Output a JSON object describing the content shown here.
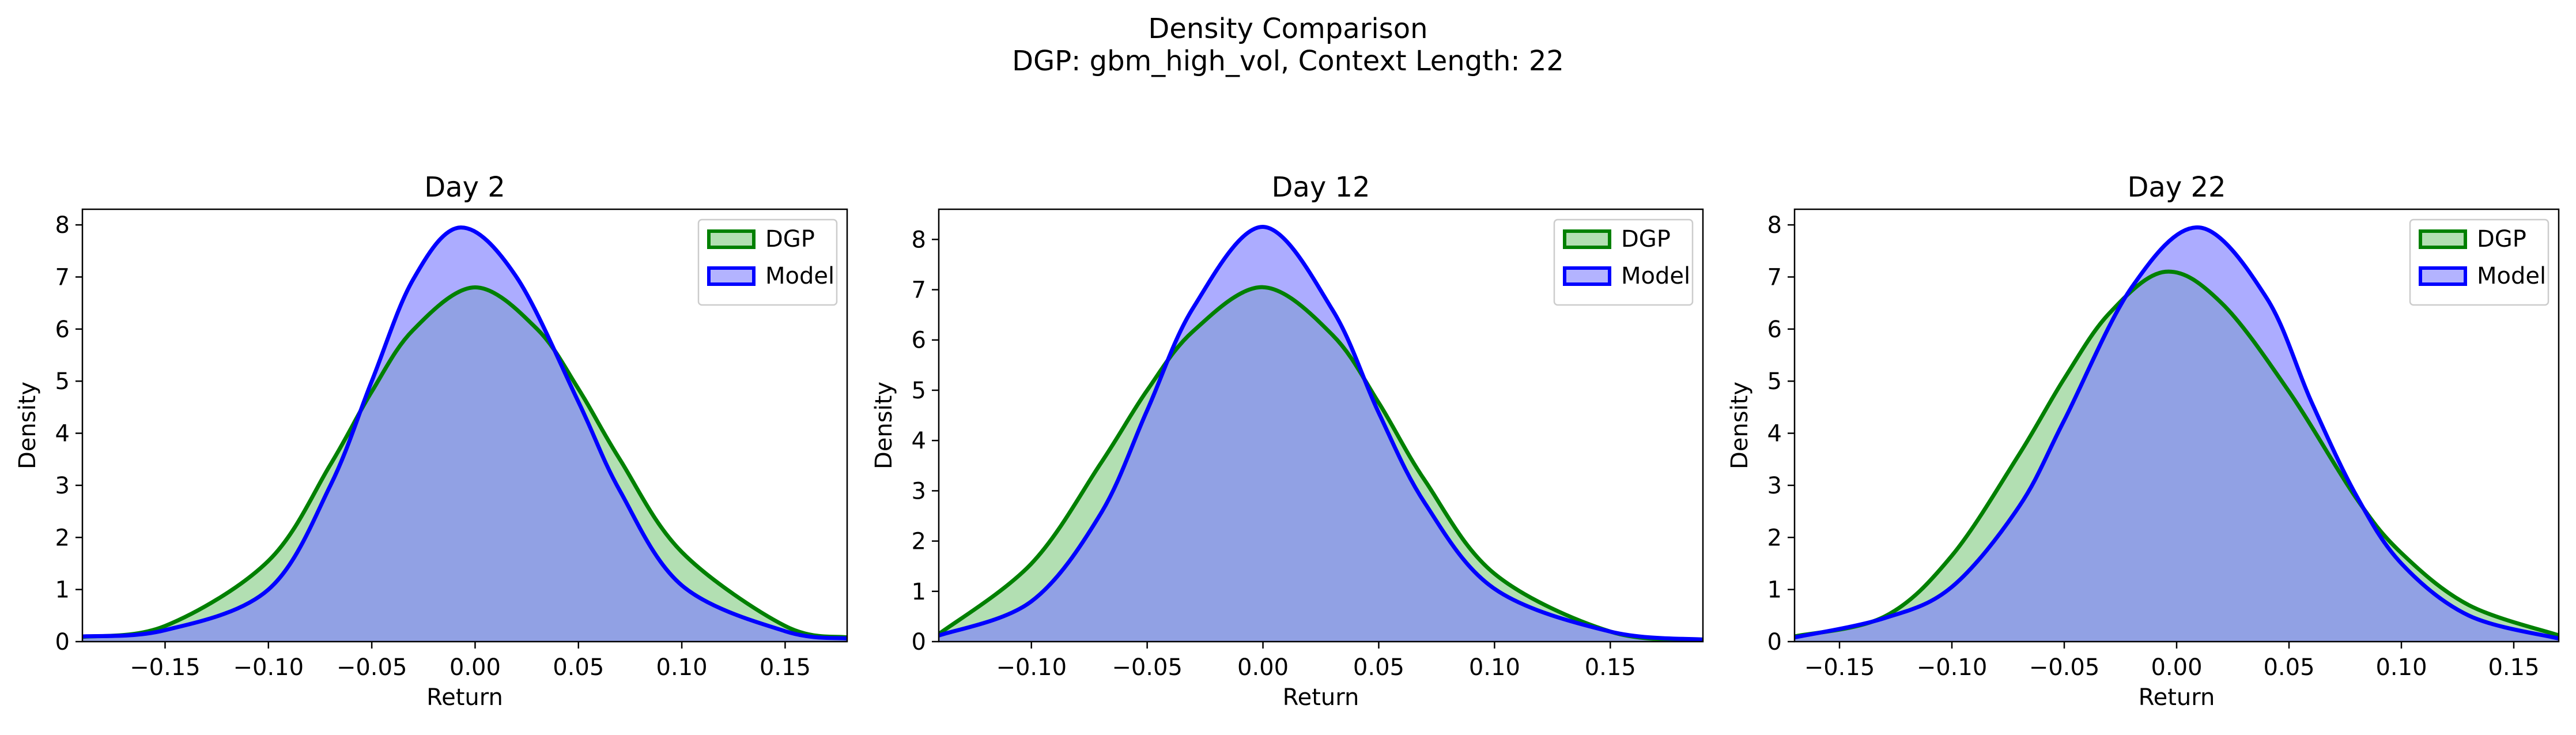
{
  "figure": {
    "title": "Density Comparison",
    "subtitle": "DGP: gbm_high_vol, Context Length: 22"
  },
  "colors": {
    "dgp_line": "#008000",
    "dgp_fill": "#7fc97f",
    "model_line": "#0000ff",
    "model_fill": "#8080ff",
    "overlap_fill": "#7f97c8"
  },
  "chart_data": [
    {
      "type": "area",
      "title": "Day 2",
      "xlabel": "Return",
      "ylabel": "Density",
      "xlim": [
        -0.19,
        0.18
      ],
      "ylim": [
        0,
        8.3
      ],
      "xticks": [
        -0.15,
        -0.1,
        -0.05,
        0.0,
        0.05,
        0.1,
        0.15
      ],
      "xtick_labels": [
        "−0.15",
        "−0.10",
        "−0.05",
        "0.00",
        "0.05",
        "0.10",
        "0.15"
      ],
      "yticks": [
        0,
        1,
        2,
        3,
        4,
        5,
        6,
        7,
        8
      ],
      "ytick_labels": [
        "0",
        "1",
        "2",
        "3",
        "4",
        "5",
        "6",
        "7",
        "8"
      ],
      "legend_position": "upper-right",
      "series": [
        {
          "name": "DGP",
          "x": [
            -0.19,
            -0.15,
            -0.1,
            -0.07,
            -0.05,
            -0.03,
            0.0,
            0.03,
            0.05,
            0.07,
            0.1,
            0.15,
            0.18
          ],
          "y": [
            0.09,
            0.3,
            1.55,
            3.4,
            4.8,
            5.98,
            6.8,
            6.0,
            4.85,
            3.5,
            1.72,
            0.3,
            0.08
          ]
        },
        {
          "name": "Model",
          "x": [
            -0.19,
            -0.15,
            -0.1,
            -0.07,
            -0.05,
            -0.03,
            -0.007,
            0.02,
            0.05,
            0.07,
            0.1,
            0.15,
            0.18
          ],
          "y": [
            0.1,
            0.22,
            1.0,
            3.0,
            5.0,
            6.95,
            7.95,
            7.0,
            4.6,
            2.9,
            1.08,
            0.2,
            0.06
          ]
        }
      ]
    },
    {
      "type": "area",
      "title": "Day 12",
      "xlabel": "Return",
      "ylabel": "Density",
      "xlim": [
        -0.14,
        0.19
      ],
      "ylim": [
        0,
        8.6
      ],
      "xticks": [
        -0.1,
        -0.05,
        0.0,
        0.05,
        0.1,
        0.15
      ],
      "xtick_labels": [
        "−0.10",
        "−0.05",
        "0.00",
        "0.05",
        "0.10",
        "0.15"
      ],
      "yticks": [
        0,
        1,
        2,
        3,
        4,
        5,
        6,
        7,
        8
      ],
      "ytick_labels": [
        "0",
        "1",
        "2",
        "3",
        "4",
        "5",
        "6",
        "7",
        "8"
      ],
      "legend_position": "upper-right",
      "series": [
        {
          "name": "DGP",
          "x": [
            -0.14,
            -0.1,
            -0.07,
            -0.05,
            -0.03,
            0.0,
            0.03,
            0.05,
            0.07,
            0.1,
            0.15,
            0.19
          ],
          "y": [
            0.15,
            1.55,
            3.55,
            5.0,
            6.18,
            7.05,
            6.1,
            4.75,
            3.2,
            1.35,
            0.2,
            0.04
          ]
        },
        {
          "name": "Model",
          "x": [
            -0.14,
            -0.1,
            -0.07,
            -0.05,
            -0.03,
            0.0,
            0.03,
            0.05,
            0.07,
            0.1,
            0.15,
            0.19
          ],
          "y": [
            0.12,
            0.8,
            2.55,
            4.6,
            6.65,
            8.25,
            6.6,
            4.55,
            2.75,
            1.05,
            0.2,
            0.04
          ]
        }
      ]
    },
    {
      "type": "area",
      "title": "Day 22",
      "xlabel": "Return",
      "ylabel": "Density",
      "xlim": [
        -0.17,
        0.17
      ],
      "ylim": [
        0,
        8.3
      ],
      "xticks": [
        -0.15,
        -0.1,
        -0.05,
        0.0,
        0.05,
        0.1,
        0.15
      ],
      "xtick_labels": [
        "−0.15",
        "−0.10",
        "−0.05",
        "0.00",
        "0.05",
        "0.10",
        "0.15"
      ],
      "yticks": [
        0,
        1,
        2,
        3,
        4,
        5,
        6,
        7,
        8
      ],
      "ytick_labels": [
        "0",
        "1",
        "2",
        "3",
        "4",
        "5",
        "6",
        "7",
        "8"
      ],
      "legend_position": "upper-right",
      "series": [
        {
          "name": "DGP",
          "x": [
            -0.17,
            -0.13,
            -0.1,
            -0.07,
            -0.05,
            -0.03,
            -0.005,
            0.02,
            0.05,
            0.08,
            0.1,
            0.13,
            0.17
          ],
          "y": [
            0.1,
            0.48,
            1.65,
            3.6,
            5.05,
            6.3,
            7.1,
            6.5,
            4.8,
            2.75,
            1.7,
            0.7,
            0.12
          ]
        },
        {
          "name": "Model",
          "x": [
            -0.17,
            -0.13,
            -0.1,
            -0.07,
            -0.05,
            -0.02,
            0.01,
            0.04,
            0.06,
            0.08,
            0.1,
            0.13,
            0.17
          ],
          "y": [
            0.08,
            0.45,
            1.05,
            2.6,
            4.25,
            6.8,
            7.95,
            6.6,
            4.6,
            2.8,
            1.5,
            0.5,
            0.06
          ]
        }
      ]
    }
  ]
}
